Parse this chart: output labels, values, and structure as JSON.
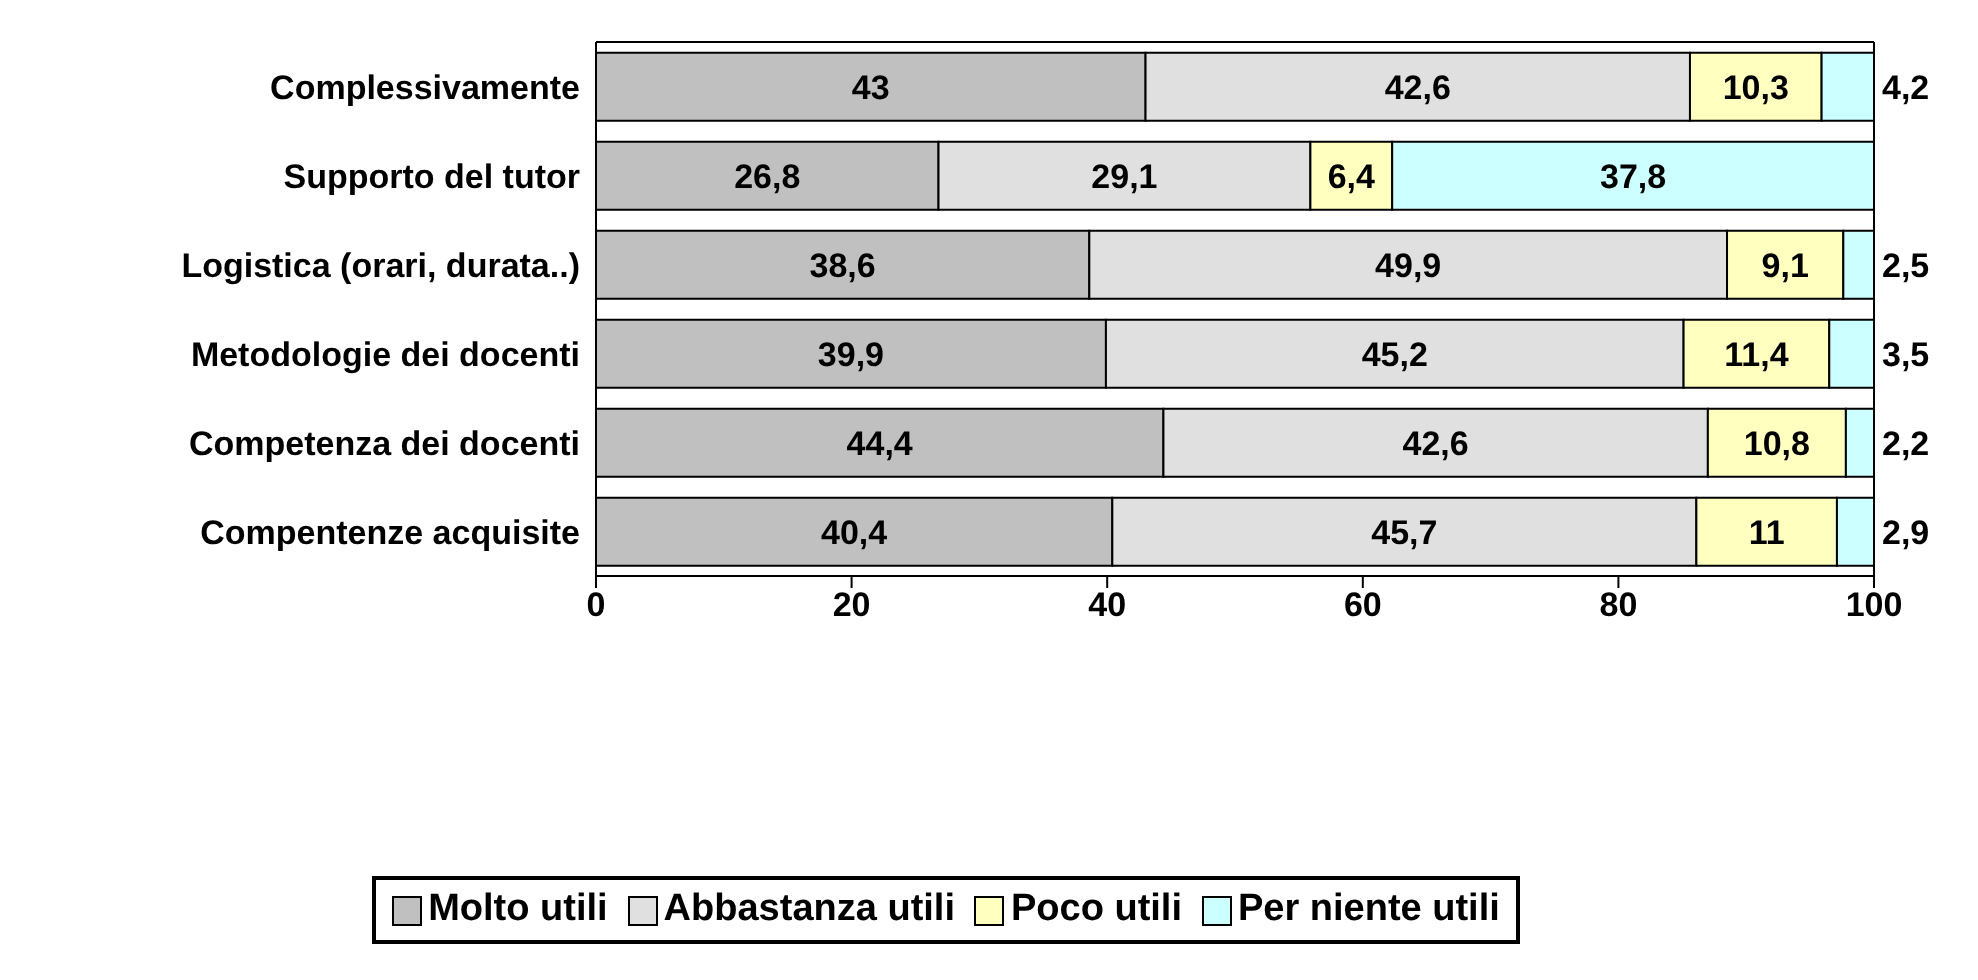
{
  "chart_data": {
    "type": "bar",
    "orientation": "horizontal",
    "stacked": true,
    "categories": [
      "Complessivamente",
      "Supporto del tutor",
      "Logistica (orari, durata..)",
      "Metodologie dei docenti",
      "Competenza dei docenti",
      "Compentenze acquisite"
    ],
    "series": [
      {
        "name": "Molto utili",
        "color": "#c0c0c0",
        "values": [
          43,
          26.8,
          38.6,
          39.9,
          44.4,
          40.4
        ],
        "value_labels": [
          "43",
          "26,8",
          "38,6",
          "39,9",
          "44,4",
          "40,4"
        ]
      },
      {
        "name": "Abbastanza utili",
        "color": "#e0e0e0",
        "values": [
          42.6,
          29.1,
          49.9,
          45.2,
          42.6,
          45.7
        ],
        "value_labels": [
          "42,6",
          "29,1",
          "49,9",
          "45,2",
          "42,6",
          "45,7"
        ]
      },
      {
        "name": "Poco utili",
        "color": "#ffffc0",
        "values": [
          10.3,
          6.4,
          9.1,
          11.4,
          10.8,
          11
        ],
        "value_labels": [
          "10,3",
          "6,4",
          "9,1",
          "11,4",
          "10,8",
          "11"
        ]
      },
      {
        "name": "Per niente utili",
        "color": "#ccffff",
        "values": [
          4.2,
          37.8,
          2.5,
          3.5,
          2.2,
          2.9
        ],
        "value_labels": [
          "4,2",
          "37,8",
          "2,5",
          "3,5",
          "2,2",
          "2,9"
        ]
      }
    ],
    "xlim": [
      0,
      100
    ],
    "xticks": [
      0,
      20,
      40,
      60,
      80,
      100
    ],
    "legend": "bottom"
  }
}
